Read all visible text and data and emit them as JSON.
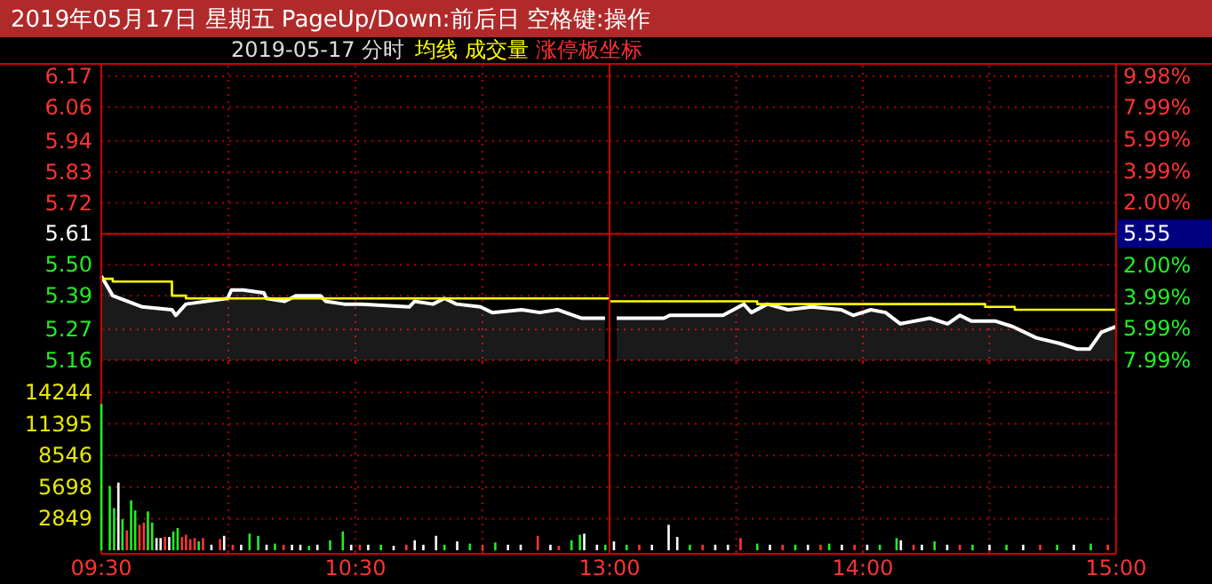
{
  "chart_data": [
    {
      "type": "area",
      "title": "2019年05月17日 星期五 PageUp/Down:前后日 空格键:操作",
      "subtitle": "2019-05-17 分时",
      "xlim": [
        9.5,
        11.5
      ],
      "xticks": [
        {
          "value": 9.5,
          "label": null
        },
        {
          "value": 10,
          "label": null
        },
        {
          "value": 10.5,
          "label": null
        },
        {
          "value": 11,
          "label": null
        }
      ],
      "tick_labels": "y",
      "ylim": [
        5.16,
        6.17
      ],
      "yticks": [
        5.16,
        5.27,
        5.39,
        {
          "value": 5.5,
          "label": "5.50"
        },
        5.61,
        5.72,
        5.83,
        5.94,
        6.06,
        6.17
      ],
      "grid": true,
      "legend": "top",
      "ref_lines": [
        {
          "axis": "y",
          "value": 5.61,
          "color": "#cc0000",
          "line_style": "solid"
        }
      ],
      "annotations": [
        "涨停板坐标"
      ],
      "series": [
        {
          "color": "#ffffff",
          "x": [
            9.5,
            9.545,
            9.662,
            9.778,
            9.793,
            9.833,
            9.997,
            10.012,
            10.058,
            10.14,
            10.15,
            10.222,
            10.267,
            10.362,
            10.383,
            10.455,
            10.525,
            10.712,
            10.733,
            10.805,
            10.85,
            10.898,
            10.992,
            11.038,
            11.155,
            11.225,
            11.295,
            11.388,
            11.482
          ],
          "values": [
            5.46,
            5.39,
            5.35,
            5.34,
            5.32,
            5.36,
            5.38,
            5.41,
            5.41,
            5.4,
            5.38,
            5.37,
            5.39,
            5.39,
            5.37,
            5.36,
            5.36,
            5.35,
            5.37,
            5.36,
            5.38,
            5.36,
            5.35,
            5.33,
            5.34,
            5.33,
            5.34,
            5.31,
            5.31
          ]
        },
        {
          "type": "step",
          "name": "均线",
          "color": "#ffff00",
          "x": [
            9.5,
            9.545,
            9.778,
            9.833,
            11.5
          ],
          "values": [
            5.45,
            5.44,
            5.39,
            5.38,
            5.38
          ]
        }
      ]
    },
    {
      "type": "area",
      "xlim": [
        13,
        15
      ],
      "xticks": [
        {
          "value": 13,
          "label": null
        },
        {
          "value": 13.5,
          "label": null
        },
        {
          "value": 14,
          "label": null
        },
        {
          "value": 14.5,
          "label": null
        },
        {
          "value": 15,
          "label": null
        }
      ],
      "tick_labels": false,
      "ylim": [
        5.16,
        6.17
      ],
      "yticks": [
        5.16,
        5.27,
        5.39,
        5.5,
        5.61,
        5.72,
        5.83,
        5.94,
        6.06,
        6.17
      ],
      "y2lim": [
        -7.99,
        9.98
      ],
      "y2ticks": [
        {
          "value": -7.99,
          "label": "7.99%"
        },
        {
          "value": -5.99,
          "label": "5.99%"
        },
        {
          "value": -3.99,
          "label": "3.99%"
        },
        {
          "value": -2.0,
          "label": "2.00%"
        },
        {
          "value": 2.0,
          "label": "2.00%"
        },
        {
          "value": 3.99,
          "label": "3.99%"
        },
        {
          "value": 5.99,
          "label": "5.99%"
        },
        {
          "value": 7.99,
          "label": "7.99%"
        },
        {
          "value": 9.98,
          "label": "9.98%"
        }
      ],
      "grid": true,
      "ref_lines": [
        {
          "axis": "y",
          "value": 5.61,
          "color": "#cc0000",
          "line_style": "solid"
        }
      ],
      "annotations": [
        "5.55"
      ],
      "series": [
        {
          "color": "#ffffff",
          "x": [
            13.028,
            13.215,
            13.238,
            13.448,
            13.53,
            13.56,
            13.623,
            13.705,
            13.798,
            13.915,
            13.962,
            14.032,
            14.09,
            14.148,
            14.265,
            14.335,
            14.383,
            14.428,
            14.522,
            14.592,
            14.685,
            14.778,
            14.848,
            14.895,
            14.942,
            15
          ],
          "values": [
            5.31,
            5.31,
            5.32,
            5.32,
            5.36,
            5.33,
            5.36,
            5.34,
            5.35,
            5.34,
            5.32,
            5.34,
            5.33,
            5.29,
            5.31,
            5.29,
            5.32,
            5.3,
            5.3,
            5.28,
            5.24,
            5.22,
            5.2,
            5.2,
            5.26,
            5.28
          ]
        },
        {
          "type": "step",
          "color": "#ffff00",
          "x": [
            13,
            13.583,
            14.483,
            14.6,
            15
          ],
          "values": [
            5.37,
            5.36,
            5.35,
            5.34,
            5.34
          ]
        }
      ]
    },
    {
      "type": "bar",
      "xlim": [
        9.5,
        11.5
      ],
      "xticks": [
        {
          "value": 9.5,
          "label": "09:30"
        },
        {
          "value": 10,
          "label": null
        },
        {
          "value": 10.5,
          "label": "10:30"
        },
        {
          "value": 11,
          "label": null
        }
      ],
      "ylim": [
        0,
        14244
      ],
      "yticks": [
        2849,
        5698,
        8546,
        11395,
        14244
      ],
      "grid": true,
      "series": [
        {
          "name": "成交量",
          "color": "#ffff00",
          "x": [
            9.5,
            9.533,
            9.55,
            9.567,
            9.583,
            9.6,
            9.617,
            9.633,
            9.65,
            9.667,
            9.683,
            9.7,
            9.717,
            9.733,
            9.75,
            9.767,
            9.783,
            9.8,
            9.817,
            9.833,
            9.85,
            9.867,
            9.883,
            9.9,
            9.933,
            9.967,
            9.983,
            10.017,
            10.05,
            10.083,
            10.117,
            10.15,
            10.183,
            10.217,
            10.25,
            10.283,
            10.317,
            10.35,
            10.4,
            10.45,
            10.483,
            10.517,
            10.55,
            10.6,
            10.65,
            10.7,
            10.733,
            10.767,
            10.817,
            10.85,
            10.9,
            10.95,
            11,
            11.05,
            11.1,
            11.15,
            11.217,
            11.267,
            11.3,
            11.35,
            11.383,
            11.4,
            11.45,
            11.483
          ],
          "values": [
            13200,
            5800,
            3800,
            6100,
            2800,
            1800,
            4500,
            3600,
            2300,
            2500,
            3500,
            2500,
            1100,
            1100,
            1200,
            1200,
            1700,
            2000,
            1200,
            1400,
            1000,
            1100,
            800,
            1100,
            500,
            1000,
            1300,
            500,
            500,
            1500,
            1300,
            500,
            600,
            500,
            500,
            500,
            400,
            500,
            900,
            1700,
            500,
            500,
            500,
            500,
            400,
            500,
            900,
            500,
            1300,
            500,
            800,
            600,
            500,
            700,
            500,
            500,
            1300,
            500,
            400,
            900,
            1400,
            1500,
            500,
            500
          ],
          "colors": [
            "#22ee22",
            "#22ee22",
            "#22ee22",
            "#ffffff",
            "#22ee22",
            "#ff3333",
            "#22ee22",
            "#22ee22",
            "#ff3333",
            "#ff3333",
            "#22ee22",
            "#22ee22",
            "#ffffff",
            "#ffffff",
            "#ff3333",
            "#ffffff",
            "#22ee22",
            "#22ee22",
            "#ff3333",
            "#ff3333",
            "#ff3333",
            "#ff3333",
            "#22ee22",
            "#ff3333",
            "#ffffff",
            "#ff3333",
            "#ffffff",
            "#ff3333",
            "#ffffff",
            "#22ee22",
            "#22ee22",
            "#ffffff",
            "#22ee22",
            "#ff3333",
            "#ffffff",
            "#ffffff",
            "#22ee22",
            "#ffffff",
            "#22ee22",
            "#22ee22",
            "#ffffff",
            "#ff3333",
            "#ffffff",
            "#22ee22",
            "#ffffff",
            "#ff3333",
            "#ffffff",
            "#ffffff",
            "#ffffff",
            "#22ee22",
            "#ffffff",
            "#22ee22",
            "#ff3333",
            "#22ee22",
            "#ffffff",
            "#ffffff",
            "#ff3333",
            "#ffffff",
            "#ff3333",
            "#22ee22",
            "#22ee22",
            "#ffffff",
            "#ffffff",
            "#22ee22"
          ]
        }
      ]
    },
    {
      "type": "bar",
      "xlim": [
        13,
        15
      ],
      "xticks": [
        {
          "value": 13,
          "label": "13:00"
        },
        {
          "value": 13.5,
          "label": null
        },
        {
          "value": 14,
          "label": "14:00"
        },
        {
          "value": 14.5,
          "label": null
        },
        {
          "value": 15,
          "label": "15:00"
        }
      ],
      "tick_labels": "x",
      "ylim": [
        0,
        14244
      ],
      "yticks": [
        2849,
        5698,
        8546,
        11395,
        14244
      ],
      "grid": true,
      "series": [
        {
          "x": [
            13.017,
            13.067,
            13.117,
            13.167,
            13.233,
            13.267,
            13.317,
            13.367,
            13.417,
            13.467,
            13.517,
            13.583,
            13.633,
            13.683,
            13.733,
            13.783,
            13.833,
            13.867,
            13.917,
            13.967,
            14.017,
            14.067,
            14.133,
            14.15,
            14.2,
            14.233,
            14.283,
            14.333,
            14.383,
            14.433,
            14.5,
            14.567,
            14.633,
            14.7,
            14.767,
            14.833,
            14.9,
            14.967
          ],
          "values": [
            800,
            500,
            500,
            500,
            2300,
            1200,
            500,
            500,
            500,
            500,
            1100,
            600,
            500,
            500,
            500,
            500,
            500,
            600,
            500,
            500,
            500,
            500,
            1100,
            900,
            500,
            500,
            800,
            500,
            500,
            500,
            500,
            500,
            500,
            500,
            500,
            500,
            600,
            500
          ],
          "colors": [
            "#ffffff",
            "#22ee22",
            "#ff3333",
            "#ffffff",
            "#ffffff",
            "#ffffff",
            "#22ee22",
            "#ff3333",
            "#ffffff",
            "#ffffff",
            "#ff3333",
            "#22ee22",
            "#ffffff",
            "#ff3333",
            "#22ee22",
            "#ffffff",
            "#ff3333",
            "#22ee22",
            "#ffffff",
            "#ff3333",
            "#ffffff",
            "#22ee22",
            "#22ee22",
            "#ffffff",
            "#ff3333",
            "#ffffff",
            "#22ee22",
            "#ffffff",
            "#ff3333",
            "#22ee22",
            "#ffffff",
            "#22ee22",
            "#ffffff",
            "#ff3333",
            "#22ee22",
            "#ffffff",
            "#22ee22",
            "#ff3333"
          ]
        }
      ]
    }
  ]
}
